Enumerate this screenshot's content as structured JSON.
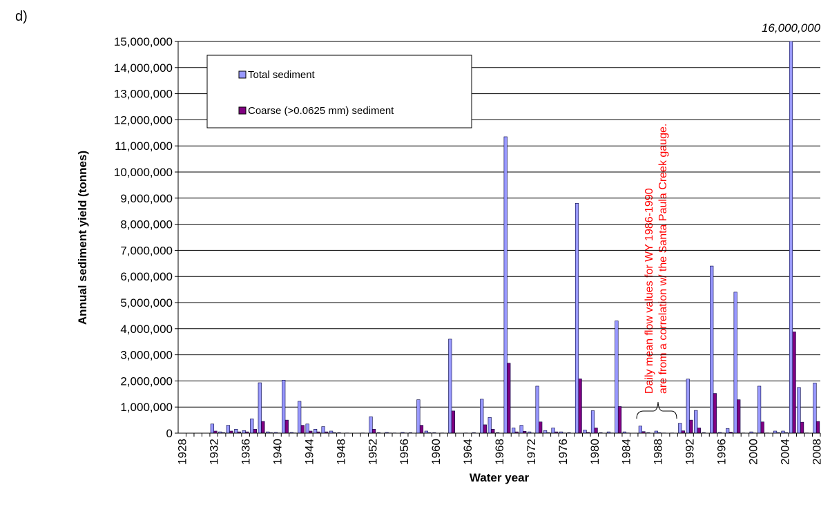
{
  "panel_label": "d)",
  "chart_data": {
    "type": "bar",
    "x_label": "Water year",
    "y_label": "Annual sediment yield (tonnes)",
    "categories": [
      "1928",
      null,
      null,
      null,
      "1932",
      null,
      null,
      null,
      "1936",
      null,
      null,
      null,
      "1940",
      null,
      null,
      null,
      "1944",
      null,
      null,
      null,
      "1948",
      null,
      null,
      null,
      "1952",
      null,
      null,
      null,
      "1956",
      null,
      null,
      null,
      "1960",
      null,
      null,
      null,
      "1964",
      null,
      null,
      null,
      "1968",
      null,
      null,
      null,
      "1972",
      null,
      null,
      null,
      "1976",
      null,
      null,
      null,
      "1980",
      null,
      null,
      null,
      "1984",
      null,
      null,
      null,
      "1988",
      null,
      null,
      null,
      "1992",
      null,
      null,
      null,
      "1996",
      null,
      null,
      null,
      "2000",
      null,
      null,
      null,
      "2004",
      null,
      null,
      null,
      "2008"
    ],
    "series": [
      {
        "name": "Total sediment",
        "color": "#9999ff",
        "values": [
          0,
          0,
          0,
          0,
          350000,
          50000,
          300000,
          150000,
          100000,
          550000,
          1930000,
          50000,
          30000,
          2030000,
          30000,
          1220000,
          350000,
          150000,
          250000,
          80000,
          20000,
          10000,
          0,
          10000,
          630000,
          20000,
          30000,
          10000,
          30000,
          20000,
          1280000,
          80000,
          20000,
          10000,
          3600000,
          0,
          10000,
          20000,
          1300000,
          600000,
          20000,
          11350000,
          200000,
          300000,
          50000,
          1800000,
          100000,
          200000,
          50000,
          20000,
          8800000,
          120000,
          860000,
          20000,
          50000,
          4300000,
          50000,
          0,
          270000,
          20000,
          80000,
          10000,
          10000,
          380000,
          2070000,
          870000,
          20000,
          6400000,
          30000,
          180000,
          5400000,
          10000,
          50000,
          1800000,
          10000,
          80000,
          80000,
          16000000,
          1750000,
          10000,
          1920000
        ],
        "value_labels": [
          null,
          null,
          null,
          null,
          null,
          null,
          null,
          null,
          null,
          null,
          null,
          null,
          null,
          null,
          null,
          null,
          null,
          null,
          null,
          null,
          null,
          null,
          null,
          null,
          null,
          null,
          null,
          null,
          null,
          null,
          null,
          null,
          null,
          null,
          null,
          null,
          null,
          null,
          null,
          null,
          null,
          null,
          null,
          null,
          null,
          null,
          null,
          null,
          null,
          null,
          null,
          null,
          null,
          null,
          null,
          null,
          null,
          null,
          null,
          null,
          null,
          null,
          null,
          null,
          null,
          null,
          null,
          null,
          null,
          null,
          null,
          null,
          null,
          null,
          null,
          null,
          null,
          "16,000,000",
          null,
          null,
          null
        ]
      },
      {
        "name": "Coarse (>0.0625 mm) sediment",
        "color": "#800080",
        "values": [
          0,
          0,
          0,
          0,
          80000,
          20000,
          80000,
          50000,
          50000,
          150000,
          450000,
          20000,
          10000,
          500000,
          10000,
          300000,
          80000,
          50000,
          50000,
          20000,
          0,
          0,
          0,
          0,
          150000,
          0,
          10000,
          0,
          10000,
          0,
          300000,
          20000,
          0,
          0,
          850000,
          0,
          0,
          0,
          320000,
          150000,
          0,
          2680000,
          50000,
          70000,
          10000,
          430000,
          20000,
          50000,
          10000,
          0,
          2080000,
          30000,
          200000,
          0,
          10000,
          1020000,
          10000,
          0,
          60000,
          0,
          20000,
          0,
          0,
          90000,
          500000,
          200000,
          0,
          1520000,
          10000,
          40000,
          1280000,
          0,
          10000,
          430000,
          0,
          20000,
          20000,
          3880000,
          420000,
          0,
          450000
        ]
      }
    ],
    "ylim": [
      0,
      15000000
    ],
    "yticks": [
      0,
      {
        "value": 1000000,
        "label": "1,000,000"
      },
      {
        "value": 2000000,
        "label": "2,000,000"
      },
      {
        "value": 3000000,
        "label": "3,000,000"
      },
      {
        "value": 4000000,
        "label": "4,000,000"
      },
      {
        "value": 5000000,
        "label": "5,000,000"
      },
      {
        "value": 6000000,
        "label": "6,000,000"
      },
      {
        "value": 7000000,
        "label": "7,000,000"
      },
      {
        "value": 8000000,
        "label": "8,000,000"
      },
      {
        "value": 9000000,
        "label": "9,000,000"
      },
      {
        "value": 10000000,
        "label": "10,000,000"
      },
      {
        "value": 11000000,
        "label": "11,000,000"
      },
      {
        "value": 12000000,
        "label": "12,000,000"
      },
      {
        "value": 13000000,
        "label": "13,000,000"
      },
      {
        "value": 14000000,
        "label": "14,000,000"
      },
      {
        "value": 15000000,
        "label": "15,000,000"
      }
    ],
    "grid": true,
    "annotations": [
      "Daily mean flow values for WY 1986-1990",
      "are from a correlation w/ the Santa Paula Creek gauge."
    ]
  }
}
